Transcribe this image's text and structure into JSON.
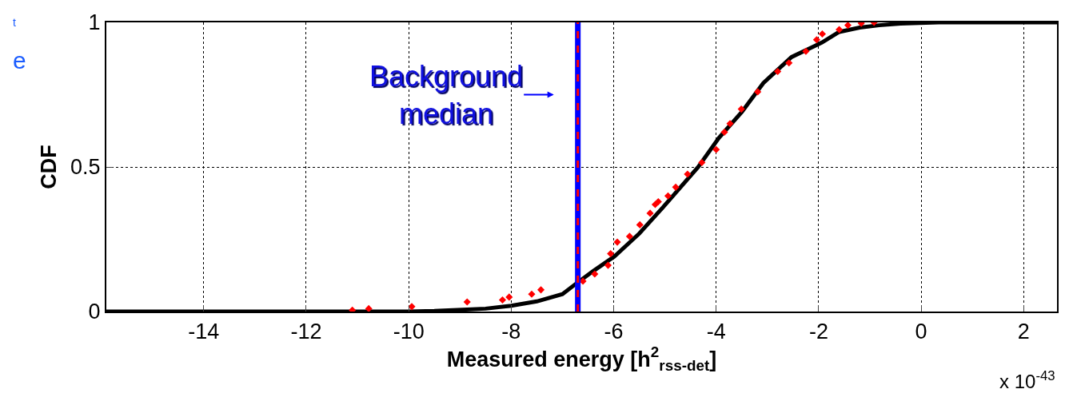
{
  "chart_data": {
    "type": "line",
    "xlabel": "Measured energy [h$^{2}$$_{rss-det}$]",
    "ylabel": "CDF",
    "xlim": [
      -15.9,
      2.65
    ],
    "xticks": [
      -14,
      -12,
      -10,
      -8,
      -6,
      -4,
      -2,
      0,
      2
    ],
    "ylim": [
      0,
      1
    ],
    "yticks": [
      0,
      0.5,
      1
    ],
    "grid": true,
    "series": [
      {
        "color": "#000000",
        "line_style": "solid",
        "x": [
          -15.9,
          -12,
          -10,
          -9.5,
          -8.5,
          -8.0,
          -7.5,
          -7.0,
          -6.73,
          -6.4,
          -5.99,
          -5.5,
          -5.04,
          -4.87,
          -4.35,
          -3.95,
          -3.5,
          -3.08,
          -2.53,
          -1.94,
          -1.6,
          -1.2,
          -0.82,
          -0.4,
          0.34,
          2.65
        ],
        "values": [
          0,
          0,
          0,
          0.002,
          0.01,
          0.02,
          0.035,
          0.06,
          0.097,
          0.14,
          0.19,
          0.27,
          0.36,
          0.395,
          0.5,
          0.6,
          0.69,
          0.79,
          0.88,
          0.93,
          0.967,
          0.982,
          0.99,
          0.996,
          1.0,
          1.0
        ]
      },
      {
        "type": "scatter",
        "color": "#ff0000",
        "marker": "diamond",
        "x": [
          -11.1,
          -10.78,
          -9.94,
          -8.86,
          -8.17,
          -8.04,
          -7.6,
          -7.42,
          -6.6,
          -6.37,
          -6.11,
          -6.06,
          -5.93,
          -5.69,
          -5.49,
          -5.29,
          -5.19,
          -5.13,
          -4.94,
          -4.79,
          -4.56,
          -4.28,
          -4.0,
          -3.84,
          -3.73,
          -3.51,
          -3.19,
          -2.8,
          -2.58,
          -2.25,
          -2.04,
          -1.93,
          -1.6,
          -1.43,
          -1.17,
          -0.92
        ],
        "values": [
          0.005,
          0.01,
          0.017,
          0.033,
          0.04,
          0.05,
          0.06,
          0.075,
          0.105,
          0.13,
          0.16,
          0.2,
          0.24,
          0.26,
          0.3,
          0.34,
          0.37,
          0.38,
          0.4,
          0.43,
          0.475,
          0.515,
          0.56,
          0.62,
          0.65,
          0.7,
          0.76,
          0.83,
          0.86,
          0.9,
          0.94,
          0.96,
          0.975,
          0.99,
          0.997,
          1.0
        ]
      }
    ],
    "ref_lines": [
      {
        "axis": "x",
        "value": -6.7,
        "color": "#0000ff",
        "line_style": "solid"
      },
      {
        "axis": "x",
        "value": -6.7,
        "color": "#ff0000",
        "line_style": "dashed"
      }
    ],
    "annotations": [
      {
        "text": "Background\nmedian",
        "x": -6.7,
        "y": 0.75
      },
      "x 10$^{-43}$",
      "t",
      "e"
    ]
  }
}
